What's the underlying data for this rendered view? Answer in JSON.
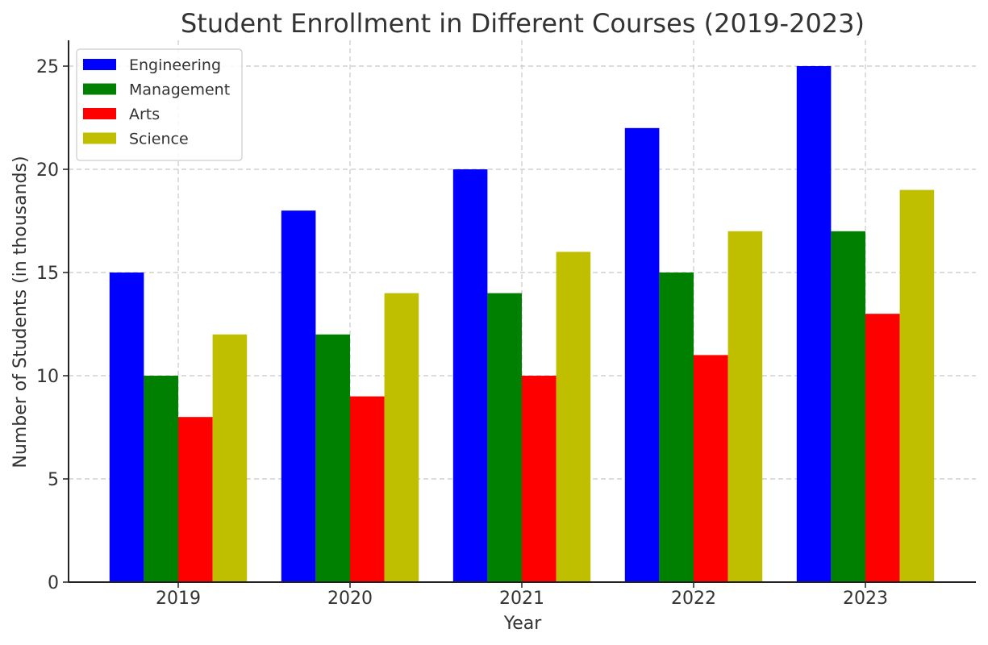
{
  "chart_data": {
    "type": "bar",
    "title": "Student Enrollment in Different Courses (2019-2023)",
    "xlabel": "Year",
    "ylabel": "Number of Students (in thousands)",
    "categories": [
      "2019",
      "2020",
      "2021",
      "2022",
      "2023"
    ],
    "ylim": [
      0,
      26.25
    ],
    "yticks": [
      0,
      5,
      10,
      15,
      20,
      25
    ],
    "grid": true,
    "legend_position": "top-left",
    "series": [
      {
        "name": "Engineering",
        "color": "#0000ff",
        "values": [
          15,
          18,
          20,
          22,
          25
        ]
      },
      {
        "name": "Management",
        "color": "#008000",
        "values": [
          10,
          12,
          14,
          15,
          17
        ]
      },
      {
        "name": "Arts",
        "color": "#ff0000",
        "values": [
          8,
          9,
          10,
          11,
          13
        ]
      },
      {
        "name": "Science",
        "color": "#bfbf00",
        "values": [
          12,
          14,
          16,
          17,
          19
        ]
      }
    ]
  }
}
